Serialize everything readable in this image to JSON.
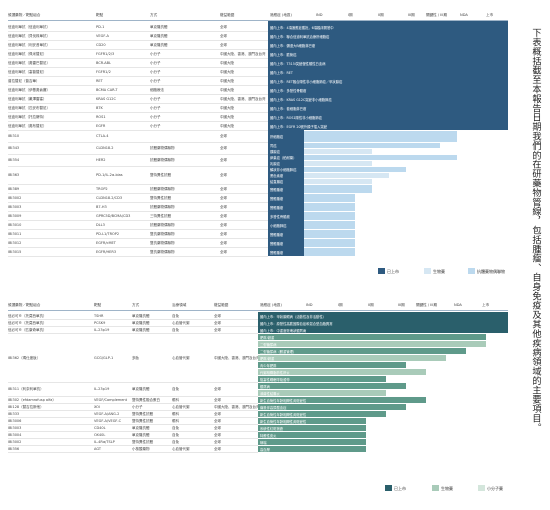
{
  "side_text": "下表概括截至本報告日期我們的在研藥物管線，包括腫瘤、自身免疫及其他疾病領域的主要項目。",
  "colors": {
    "approved": "#2e5a80",
    "approved_alt": "#1f4e79",
    "phase_light": "#bcd9ee",
    "phase_mid": "#d6e7f3",
    "teal_dark": "#2a5f6b",
    "teal_mid": "#5f9a8a",
    "teal_light": "#a9cbb9",
    "teal_pale": "#d4e6dc"
  },
  "table1": {
    "headers": [
      "候選藥物／靶點組合",
      "靶點",
      "方式",
      "權益範圍",
      "適應症 (地區)",
      "IND",
      "I期",
      "II期",
      "III期",
      "關鍵性 / III期",
      "NDA",
      "上市"
    ],
    "group_header_text": "國內上市 / 美國 / 歐洲 / 日本",
    "rows": [
      {
        "name": "信迪利單抗（信迪利單抗）",
        "target": "PD-1",
        "mode": "單克隆抗體",
        "rights": "全球",
        "note": "國內上市：4項適應症獲批，6項臨床開發中",
        "bar": "dark"
      },
      {
        "name": "信迪利單抗（貝伐珠單抗）",
        "target": "VEGF-A",
        "mode": "單克隆抗體",
        "rights": "全球",
        "note": "國內上市：聯合信迪利單抗治療肝細胞癌",
        "bar": "dark"
      },
      {
        "name": "信迪利單抗（利妥昔單抗）",
        "target": "CD20",
        "mode": "單克隆抗體",
        "rights": "全球",
        "note": "國內上市：彌漫大B細胞淋巴瘤",
        "bar": "dark"
      },
      {
        "name": "信迪利單抗（佩米替尼）",
        "target": "FGFR1/2/3",
        "mode": "小分子",
        "rights": "中國大陸、香港、澳門及台灣",
        "note": "國內上市：膽管癌",
        "bar": "dark"
      },
      {
        "name": "信迪利單抗（奧雷巴替尼）",
        "target": "BCR-ABL",
        "mode": "小分子",
        "rights": "中國大陸",
        "note": "國內上市：T315I突變慢性髓性白血病",
        "bar": "dark"
      },
      {
        "name": "信迪利單抗（塞普替尼）",
        "target": "FGFR1/2",
        "mode": "小分子",
        "rights": "中國大陸",
        "note": "國內上市：RET",
        "bar": "dark"
      },
      {
        "name": "普拉替尼（普吉華）",
        "target": "RET",
        "mode": "小分子",
        "rights": "中國大陸",
        "note": "國內上市：RET融合陽性非小細胞肺癌／甲狀腺癌",
        "bar": "dark"
      },
      {
        "name": "信迪利單抗（伊基奧侖賽）",
        "target": "BCMA CAR-T",
        "mode": "細胞療法",
        "rights": "中國大陸",
        "note": "國內上市：多發性骨髓瘤",
        "bar": "dark"
      },
      {
        "name": "信迪利單抗（氟澤雷塞）",
        "target": "KRAS G12C",
        "mode": "小分子",
        "rights": "中國大陸、香港、澳門及台灣",
        "note": "國內上市：KRAS G12C突變非小細胞肺癌",
        "bar": "dark"
      },
      {
        "name": "信迪利單抗（匹妥布替尼）",
        "target": "BTK",
        "mode": "小分子",
        "rights": "中國大陸",
        "note": "國內上市：套細胞淋巴瘤",
        "bar": "dark"
      },
      {
        "name": "信迪利單抗（托拉薩特）",
        "target": "ROS1",
        "mode": "小分子",
        "rights": "中國大陸",
        "note": "國內上市：ROS1陽性非小細胞肺癌",
        "bar": "dark"
      },
      {
        "name": "信迪利單抗（奧布替尼）",
        "target": "EGFR",
        "mode": "小分子",
        "rights": "中國大陸",
        "note": "國內上市：EGFR 20號外顯子插入突變",
        "bar": "dark"
      },
      {
        "name": "IBI310",
        "target": "CTLA-4",
        "mode": "",
        "rights": "全球",
        "note": "肝細胞癌",
        "bar": "phase",
        "phases": [
          [
            "肝細胞癌",
            9
          ]
        ]
      },
      {
        "name": "IBI343",
        "target": "CLDN18.2",
        "mode": "抗體藥物偶聯物",
        "rights": "全球",
        "note": "胃癌",
        "bar": "phase",
        "phases": [
          [
            "胃癌",
            8
          ],
          [
            "胰腺癌",
            4
          ]
        ]
      },
      {
        "name": "IBI354",
        "target": "HER2",
        "mode": "抗體藥物偶聯物",
        "rights": "全球",
        "note": "卵巢癌",
        "bar": "phase",
        "phases": [
          [
            "卵巢癌（鉑耐藥）",
            9
          ],
          [
            "乳腺癌",
            4
          ]
        ]
      },
      {
        "name": "IBI363",
        "target": "PD-1/IL-2α-bias",
        "mode": "雙特異性抗體",
        "rights": "全球",
        "note": "",
        "bar": "phase",
        "phases": [
          [
            "鱗狀非小細胞肺癌",
            6
          ],
          [
            "黑色素瘤",
            5
          ],
          [
            "結直腸癌",
            4
          ]
        ]
      },
      {
        "name": "IBI389",
        "target": "TROP2",
        "mode": "抗體藥物偶聯物",
        "rights": "全球",
        "note": "實體腫瘤",
        "bar": "phase",
        "phases": [
          [
            "實體腫瘤",
            4
          ]
        ]
      },
      {
        "name": "IBI3002",
        "target": "CLDN18.2/CD3",
        "mode": "雙特異性抗體",
        "rights": "全球",
        "note": "實體腫瘤",
        "bar": "phase",
        "phases": [
          [
            "實體腫瘤",
            3
          ]
        ]
      },
      {
        "name": "IBI3003",
        "target": "B7-H3",
        "mode": "抗體藥物偶聯物",
        "rights": "全球",
        "note": "實體腫瘤",
        "bar": "phase",
        "phases": [
          [
            "實體腫瘤",
            3
          ]
        ]
      },
      {
        "name": "IBI3009",
        "target": "GPRC5D/BCMA/CD3",
        "mode": "三特異性抗體",
        "rights": "全球",
        "note": "多發性骨髓瘤",
        "bar": "phase",
        "phases": [
          [
            "多發性骨髓瘤",
            3
          ]
        ]
      },
      {
        "name": "IBI3010",
        "target": "DLL3",
        "mode": "抗體藥物偶聯物",
        "rights": "全球",
        "note": "小細胞肺癌",
        "bar": "phase",
        "phases": [
          [
            "小細胞肺癌",
            3
          ]
        ]
      },
      {
        "name": "IBI3011",
        "target": "PD-L1/TROP2",
        "mode": "雙抗藥物偶聯物",
        "rights": "全球",
        "note": "實體腫瘤",
        "bar": "phase",
        "phases": [
          [
            "實體腫瘤",
            3
          ]
        ]
      },
      {
        "name": "IBI3012",
        "target": "EGFR/cMET",
        "mode": "雙抗藥物偶聯物",
        "rights": "全球",
        "note": "實體腫瘤",
        "bar": "phase",
        "phases": [
          [
            "實體腫瘤",
            3
          ]
        ]
      },
      {
        "name": "IBI3015",
        "target": "EGFR/HER3",
        "mode": "雙抗藥物偶聯物",
        "rights": "全球",
        "note": "實體腫瘤",
        "bar": "phase",
        "phases": [
          [
            "實體腫瘤",
            3
          ]
        ]
      }
    ],
    "legend": [
      {
        "label": "已上市",
        "color": "#2e5a80"
      },
      {
        "label": "生物藥",
        "color": "#d6e7f3"
      },
      {
        "label": "抗體藥物偶聯物",
        "color": "#bcd9ee"
      }
    ]
  },
  "table2": {
    "headers": [
      "候選藥物／靶點組合",
      "靶點",
      "方式",
      "治療領域",
      "權益範圍",
      "適應症 (地區)",
      "IND",
      "I期",
      "II期",
      "III期",
      "關鍵性 / III期",
      "NDA",
      "上市"
    ],
    "rows": [
      {
        "name": "信必可®（托莫西單抗）",
        "target": "TSHR",
        "mode": "單克隆抗體",
        "area": "自免",
        "rights": "全球",
        "note": "國內上市：甲狀腺眼病（活動性及非活動性）",
        "bar": "dark"
      },
      {
        "name": "信必可®（托莫西單抗）",
        "target": "PCSK9",
        "mode": "單克隆抗體",
        "area": "心血管代謝",
        "rights": "全球",
        "note": "國內上市：原發性高膽固醇血症和混合型血脂異常",
        "bar": "dark"
      },
      {
        "name": "信必可®（匹康奇單抗）",
        "target": "IL-23p19",
        "mode": "單克隆抗體",
        "area": "自免",
        "rights": "全球",
        "note": "國內上市：中重度斑塊狀銀屑病",
        "bar": "dark"
      },
      {
        "name": "IBI362（瑪仕度肽）",
        "target": "GCG/GLP-1",
        "mode": "多肽",
        "area": "心血管代謝",
        "rights": "中國大陸、香港、澳門及台灣",
        "note": "",
        "bar": "teal",
        "phases": [
          [
            "肥胖/超重",
            10
          ],
          [
            "二型糖尿病",
            10
          ],
          [
            "二型糖尿病（體重管理）",
            9
          ],
          [
            "肥胖/超重",
            8
          ],
          [
            "青少年肥胖",
            6
          ],
          [
            "代謝相關脂肪性肝炎",
            7
          ],
          [
            "阻塞性睡眠呼吸暫停",
            5
          ]
        ]
      },
      {
        "name": "IBI311（利奈利單抗）",
        "target": "IL-23p19",
        "mode": "單克隆抗體",
        "area": "自免",
        "rights": "全球",
        "note": "銀屑病",
        "bar": "teal",
        "phases": [
          [
            "銀屑病",
            6
          ],
          [
            "潰瘍性結腸炎",
            5
          ]
        ]
      },
      {
        "name": "IBI302（efdamrofusp alfa）",
        "target": "VEGF/Complement",
        "mode": "雙特異性融合蛋白",
        "area": "眼科",
        "rights": "全球",
        "note": "",
        "bar": "teal",
        "phases": [
          [
            "新生血管性年齡相關性黃斑變性",
            7
          ]
        ]
      },
      {
        "name": "IBI128（替吉拉斯他）",
        "target": "XOI",
        "mode": "小分子",
        "area": "心血管代謝",
        "rights": "中國大陸、香港、澳門及台灣",
        "note": "",
        "bar": "teal",
        "phases": [
          [
            "痛風伴高尿酸血症",
            6
          ]
        ]
      },
      {
        "name": "IBI333",
        "target": "VEGF-A/ANG-2",
        "mode": "雙特異性抗體",
        "area": "眼科",
        "rights": "全球",
        "note": "",
        "bar": "teal",
        "phases": [
          [
            "新生血管性年齡相關性黃斑變性",
            5
          ]
        ]
      },
      {
        "name": "IBI3006",
        "target": "VEGF-A/VEGF-C",
        "mode": "雙特異性抗體",
        "area": "眼科",
        "rights": "全球",
        "note": "",
        "bar": "teal",
        "phases": [
          [
            "新生血管性年齡相關性黃斑變性",
            4
          ]
        ]
      },
      {
        "name": "IBI3003",
        "target": "CD40L",
        "mode": "單克隆抗體",
        "area": "自免",
        "rights": "全球",
        "note": "",
        "bar": "teal",
        "phases": [
          [
            "系統性紅斑狼瘡",
            4
          ]
        ]
      },
      {
        "name": "IBI3004",
        "target": "OX40L",
        "mode": "單克隆抗體",
        "area": "自免",
        "rights": "全球",
        "note": "",
        "bar": "teal",
        "phases": [
          [
            "特應性皮炎",
            4
          ]
        ]
      },
      {
        "name": "IBI3002",
        "target": "IL-4Rα/TSLP",
        "mode": "雙特異性抗體",
        "area": "自免",
        "rights": "全球",
        "note": "",
        "bar": "teal",
        "phases": [
          [
            "哮喘",
            4
          ]
        ]
      },
      {
        "name": "IBI356",
        "target": "AGT",
        "mode": "小核酸藥物",
        "area": "心血管代謝",
        "rights": "全球",
        "note": "",
        "bar": "teal",
        "phases": [
          [
            "高血壓",
            4
          ]
        ]
      }
    ],
    "legend": [
      {
        "label": "已上市",
        "color": "#2a5f6b"
      },
      {
        "label": "生物藥",
        "color": "#a9cbb9"
      },
      {
        "label": "小分子藥",
        "color": "#d4e6dc"
      }
    ]
  }
}
